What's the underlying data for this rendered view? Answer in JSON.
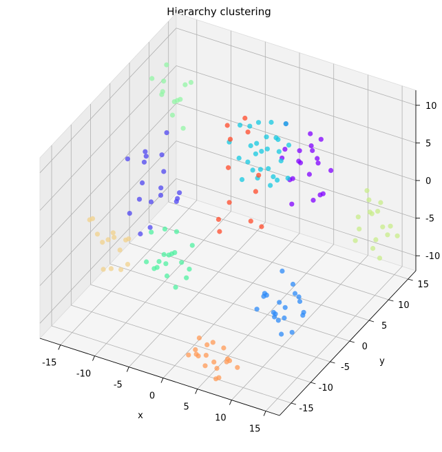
{
  "chart_data": {
    "type": "scatter",
    "projection": "3d",
    "title": "Hierarchy clustering",
    "xlabel": "x",
    "ylabel": "y",
    "zlabel": "",
    "xlim": [
      -18,
      17
    ],
    "ylim": [
      -18,
      17
    ],
    "zlim": [
      -12,
      12
    ],
    "xticks": [
      -15,
      -10,
      -5,
      0,
      5,
      10,
      15
    ],
    "yticks": [
      -15,
      -10,
      -5,
      0,
      5,
      10,
      15
    ],
    "zticks": [
      -10,
      -5,
      0,
      5,
      10
    ],
    "grid": true,
    "legend": "none",
    "clusters": [
      {
        "color": "#8000ff",
        "points": [
          [
            4,
            10,
            4
          ],
          [
            6,
            9,
            2
          ],
          [
            3,
            12,
            1
          ],
          [
            5,
            11,
            6
          ],
          [
            7,
            10,
            -1
          ],
          [
            2,
            9,
            3
          ],
          [
            4,
            8,
            -2
          ],
          [
            6,
            12,
            5
          ],
          [
            3,
            10,
            0
          ],
          [
            5,
            8,
            4
          ],
          [
            8,
            11,
            2
          ],
          [
            2,
            11,
            -1
          ],
          [
            4,
            13,
            3
          ],
          [
            7,
            8,
            6
          ],
          [
            6,
            10,
            -2
          ],
          [
            3,
            8,
            5
          ],
          [
            5,
            13,
            1
          ],
          [
            8,
            9,
            0
          ],
          [
            2,
            10,
            7
          ],
          [
            6,
            11,
            3
          ]
        ]
      },
      {
        "color": "#4f46f0",
        "points": [
          [
            -14,
            2,
            3
          ],
          [
            -12,
            0,
            -2
          ],
          [
            -15,
            4,
            1
          ],
          [
            -11,
            -2,
            -4
          ],
          [
            -13,
            5,
            -1
          ],
          [
            -16,
            1,
            2
          ],
          [
            -10,
            3,
            -3
          ],
          [
            -12,
            -3,
            0
          ],
          [
            -14,
            6,
            -5
          ],
          [
            -11,
            1,
            4
          ],
          [
            -13,
            -1,
            -6
          ],
          [
            -15,
            3,
            -2
          ],
          [
            -12,
            4,
            5
          ],
          [
            -10,
            -1,
            1
          ],
          [
            -14,
            -2,
            -3
          ],
          [
            -9,
            2,
            -1
          ],
          [
            -13,
            0,
            3
          ],
          [
            -11,
            5,
            -4
          ]
        ]
      },
      {
        "color": "#2c8af7",
        "points": [
          [
            10,
            -6,
            -8
          ],
          [
            12,
            -4,
            -6
          ],
          [
            9,
            -8,
            -4
          ],
          [
            11,
            -7,
            -9
          ],
          [
            13,
            -5,
            -7
          ],
          [
            8,
            -6,
            -5
          ],
          [
            10,
            -9,
            -3
          ],
          [
            12,
            -8,
            -6
          ],
          [
            9,
            -5,
            -8
          ],
          [
            11,
            -4,
            -4
          ],
          [
            13,
            -7,
            -3
          ],
          [
            10,
            -7,
            -7
          ],
          [
            8,
            -8,
            -6
          ],
          [
            12,
            -6,
            -9
          ],
          [
            11,
            -9,
            -5
          ],
          [
            9,
            -4,
            -7
          ],
          [
            13,
            -6,
            -4
          ],
          [
            10,
            -5,
            -2
          ],
          [
            12,
            -3,
            -8
          ],
          [
            11,
            -6,
            -6
          ]
        ]
      },
      {
        "color": "#14c8e0",
        "points": [
          [
            0,
            6,
            6
          ],
          [
            -2,
            8,
            4
          ],
          [
            2,
            5,
            8
          ],
          [
            -1,
            9,
            3
          ],
          [
            1,
            7,
            5
          ],
          [
            3,
            6,
            2
          ],
          [
            -3,
            7,
            7
          ],
          [
            0,
            9,
            1
          ],
          [
            2,
            8,
            6
          ],
          [
            -2,
            5,
            4
          ],
          [
            1,
            10,
            3
          ],
          [
            3,
            9,
            5
          ],
          [
            -1,
            6,
            8
          ],
          [
            0,
            7,
            2
          ],
          [
            2,
            10,
            7
          ],
          [
            -3,
            9,
            1
          ],
          [
            1,
            4,
            6
          ],
          [
            3,
            7,
            4
          ],
          [
            -1,
            8,
            0
          ],
          [
            0,
            5,
            3
          ],
          [
            2,
            6,
            1
          ],
          [
            -2,
            10,
            6
          ],
          [
            1,
            8,
            8
          ],
          [
            3,
            5,
            3
          ],
          [
            -4,
            6,
            5
          ],
          [
            0,
            11,
            4
          ],
          [
            4,
            7,
            2
          ],
          [
            -1,
            4,
            2
          ]
        ]
      },
      {
        "color": "#4ff0a0",
        "points": [
          [
            -6,
            -6,
            -4
          ],
          [
            -4,
            -8,
            -2
          ],
          [
            -7,
            -5,
            -6
          ],
          [
            -5,
            -7,
            -3
          ],
          [
            -3,
            -6,
            -5
          ],
          [
            -8,
            -7,
            -1
          ],
          [
            -6,
            -9,
            -4
          ],
          [
            -4,
            -5,
            -7
          ],
          [
            -5,
            -9,
            -2
          ],
          [
            -7,
            -8,
            -5
          ],
          [
            -3,
            -8,
            -3
          ],
          [
            -6,
            -4,
            -2
          ],
          [
            -8,
            -5,
            -6
          ],
          [
            -4,
            -10,
            -4
          ],
          [
            -5,
            -6,
            -8
          ],
          [
            -2,
            -7,
            -1
          ],
          [
            -7,
            -10,
            -3
          ],
          [
            -6,
            -7,
            0
          ]
        ]
      },
      {
        "color": "#93f5a5",
        "points": [
          [
            -16,
            10,
            6
          ],
          [
            -15,
            12,
            4
          ],
          [
            -17,
            9,
            8
          ],
          [
            -14,
            11,
            5
          ],
          [
            -16,
            13,
            3
          ],
          [
            -15,
            8,
            7
          ],
          [
            -13,
            10,
            2
          ],
          [
            -17,
            12,
            6
          ],
          [
            -14,
            9,
            4
          ],
          [
            -16,
            11,
            9
          ],
          [
            -15,
            14,
            5
          ],
          [
            -13,
            12,
            7
          ]
        ]
      },
      {
        "color": "#c8ec8a",
        "points": [
          [
            12,
            14,
            -4
          ],
          [
            14,
            12,
            -6
          ],
          [
            11,
            15,
            -2
          ],
          [
            13,
            13,
            -8
          ],
          [
            15,
            14,
            -5
          ],
          [
            12,
            11,
            -3
          ],
          [
            14,
            15,
            -7
          ],
          [
            13,
            12,
            -1
          ],
          [
            11,
            13,
            -6
          ],
          [
            15,
            12,
            -4
          ],
          [
            12,
            16,
            -5
          ],
          [
            14,
            13,
            -9
          ],
          [
            13,
            15,
            -3
          ],
          [
            16,
            14,
            -6
          ],
          [
            11,
            12,
            -7
          ],
          [
            14,
            11,
            -2
          ]
        ]
      },
      {
        "color": "#f2d28c",
        "points": [
          [
            -14,
            -6,
            -4
          ],
          [
            -16,
            -4,
            -6
          ],
          [
            -13,
            -8,
            -2
          ],
          [
            -15,
            -7,
            -8
          ],
          [
            -17,
            -5,
            -5
          ],
          [
            -14,
            -9,
            -3
          ],
          [
            -12,
            -6,
            -7
          ],
          [
            -16,
            -8,
            -1
          ],
          [
            -13,
            -4,
            -5
          ],
          [
            -15,
            -5,
            -9
          ],
          [
            -12,
            -8,
            -4
          ],
          [
            -14,
            -3,
            -6
          ],
          [
            -17,
            -7,
            -2
          ],
          [
            -13,
            -6,
            -8
          ]
        ]
      },
      {
        "color": "#ff9a55",
        "points": [
          [
            4,
            -14,
            -10
          ],
          [
            6,
            -12,
            -11
          ],
          [
            3,
            -15,
            -9
          ],
          [
            5,
            -13,
            -12
          ],
          [
            7,
            -14,
            -10
          ],
          [
            2,
            -13,
            -11
          ],
          [
            4,
            -16,
            -9
          ],
          [
            6,
            -15,
            -12
          ],
          [
            3,
            -12,
            -10
          ],
          [
            5,
            -14,
            -8
          ],
          [
            8,
            -13,
            -11
          ],
          [
            2,
            -15,
            -10
          ],
          [
            4,
            -12,
            -12
          ],
          [
            6,
            -13,
            -9
          ],
          [
            7,
            -16,
            -11
          ],
          [
            3,
            -14,
            -8
          ],
          [
            5,
            -16,
            -10
          ],
          [
            8,
            -15,
            -9
          ]
        ]
      },
      {
        "color": "#ff4a2a",
        "points": [
          [
            -2,
            2,
            10
          ],
          [
            0,
            3,
            11
          ],
          [
            -1,
            1,
            9
          ],
          [
            1,
            2,
            10
          ],
          [
            -3,
            4,
            3
          ],
          [
            2,
            1,
            -1
          ],
          [
            0,
            -1,
            2
          ],
          [
            -2,
            0,
            -3
          ],
          [
            1,
            4,
            1
          ],
          [
            3,
            2,
            -2
          ],
          [
            -1,
            -2,
            0
          ],
          [
            2,
            3,
            4
          ]
        ]
      }
    ]
  }
}
